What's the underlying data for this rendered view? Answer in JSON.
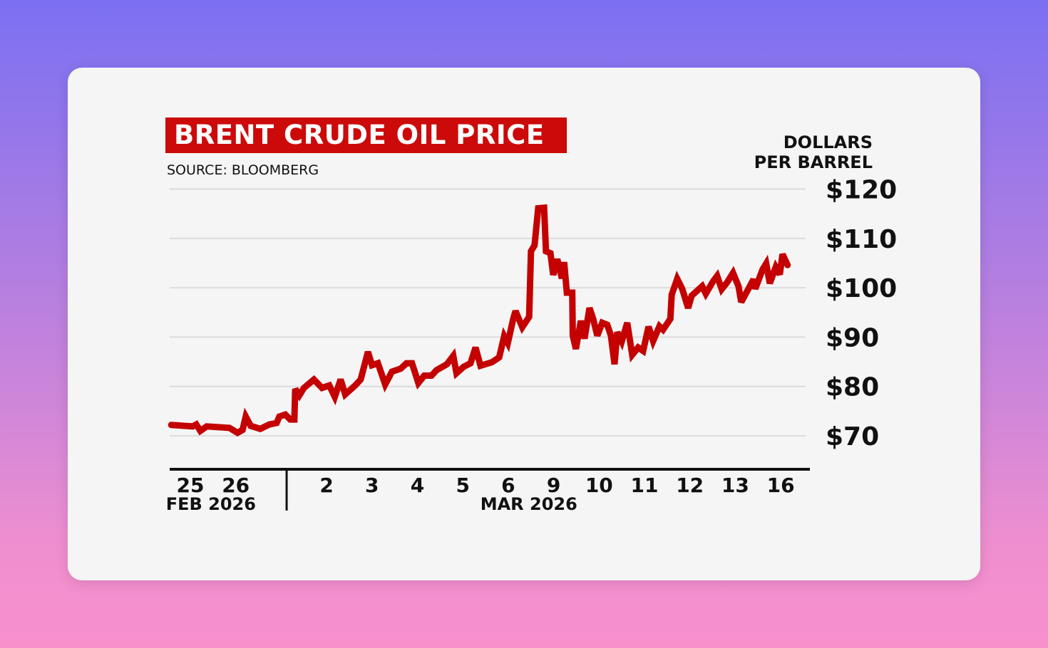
{
  "chart_data": {
    "type": "line",
    "title": "BRENT CRUDE OIL PRICE",
    "source": "SOURCE: BLOOMBERG",
    "ylabel_lines": [
      "DOLLARS",
      "PER BARREL"
    ],
    "ylim": [
      70,
      120
    ],
    "y_ticks": [
      {
        "value": 120,
        "label": "$120"
      },
      {
        "value": 110,
        "label": "$110"
      },
      {
        "value": 100,
        "label": "$100"
      },
      {
        "value": 90,
        "label": "$90"
      },
      {
        "value": 80,
        "label": "$80"
      },
      {
        "value": 70,
        "label": "$70"
      }
    ],
    "grid": true,
    "x_unit": "trading day (0 = 25 Feb 2026)",
    "x_ticks": [
      {
        "day": 0,
        "label": "25"
      },
      {
        "day": 1,
        "label": "26"
      },
      {
        "day": 3,
        "label": "2"
      },
      {
        "day": 4,
        "label": "3"
      },
      {
        "day": 5,
        "label": "4"
      },
      {
        "day": 6,
        "label": "5"
      },
      {
        "day": 7,
        "label": "6"
      },
      {
        "day": 8,
        "label": "9"
      },
      {
        "day": 9,
        "label": "10"
      },
      {
        "day": 10,
        "label": "11"
      },
      {
        "day": 11,
        "label": "12"
      },
      {
        "day": 12,
        "label": "13"
      },
      {
        "day": 13,
        "label": "16"
      }
    ],
    "months": [
      {
        "label": "FEB 2026",
        "center_day": 0.5
      },
      {
        "label": "MAR 2026",
        "center_day": 7.5
      }
    ],
    "month_divider_day": 2.12,
    "line_color": "#c40000",
    "series": [
      {
        "x": [
          -0.42,
          0.05,
          0.13,
          0.22,
          0.36,
          0.86,
          1.04,
          1.15,
          1.22,
          1.33,
          1.54,
          1.74,
          1.9,
          1.96,
          2.09,
          2.2,
          2.29,
          2.31,
          2.4,
          2.5,
          2.72,
          2.9,
          3.06,
          3.18,
          3.31,
          3.41,
          3.63,
          3.75,
          3.91,
          4.0,
          4.13,
          4.29,
          4.44,
          4.63,
          4.76,
          4.88,
          5.02,
          5.15,
          5.31,
          5.42,
          5.65,
          5.79,
          5.86,
          6.02,
          6.17,
          6.28,
          6.39,
          6.64,
          6.8,
          6.91,
          6.99,
          7.11,
          7.16,
          7.31,
          7.46,
          7.5,
          7.58,
          7.66,
          7.79,
          7.83,
          7.93,
          7.99,
          8.08,
          8.18,
          8.23,
          8.29,
          8.41,
          8.42,
          8.49,
          8.6,
          8.68,
          8.79,
          8.87,
          8.96,
          9.07,
          9.18,
          9.26,
          9.34,
          9.4,
          9.5,
          9.62,
          9.73,
          9.86,
          9.97,
          10.09,
          10.19,
          10.33,
          10.41,
          10.57,
          10.6,
          10.72,
          10.83,
          10.96,
          11.04,
          11.27,
          11.35,
          11.51,
          11.6,
          11.7,
          11.82,
          11.95,
          12.07,
          12.13,
          12.29,
          12.4,
          12.44,
          12.6,
          12.68,
          12.76,
          12.89,
          12.98,
          13.04,
          13.15
        ],
        "y": [
          72.2,
          71.9,
          72.3,
          71.0,
          71.9,
          71.6,
          70.6,
          71.2,
          73.9,
          72.0,
          71.4,
          72.3,
          72.6,
          73.9,
          74.3,
          73.3,
          73.3,
          79.5,
          78.2,
          79.7,
          81.4,
          79.7,
          80.2,
          77.9,
          81.4,
          78.4,
          80.2,
          81.4,
          87.0,
          84.3,
          84.7,
          80.4,
          83.0,
          83.6,
          84.7,
          84.7,
          80.7,
          82.2,
          82.2,
          83.3,
          84.5,
          86.2,
          82.7,
          84.0,
          84.7,
          87.9,
          84.2,
          84.9,
          85.9,
          90.2,
          88.8,
          93.7,
          95.3,
          92.0,
          94.1,
          107.4,
          108.6,
          116.1,
          116.2,
          107.4,
          107.0,
          102.6,
          105.8,
          101.9,
          105.2,
          99.0,
          99.0,
          90.3,
          87.6,
          93.3,
          89.7,
          95.9,
          93.7,
          90.3,
          92.9,
          92.5,
          90.3,
          84.5,
          91.0,
          89.1,
          92.9,
          86.4,
          87.9,
          87.2,
          92.1,
          89.2,
          92.2,
          91.5,
          93.7,
          98.6,
          101.8,
          99.8,
          95.9,
          98.4,
          100.3,
          98.8,
          101.3,
          102.4,
          99.7,
          101.1,
          103.0,
          100.3,
          97.1,
          99.8,
          101.7,
          99.8,
          103.7,
          104.9,
          100.9,
          104.2,
          102.7,
          106.8,
          104.6
        ]
      }
    ]
  }
}
